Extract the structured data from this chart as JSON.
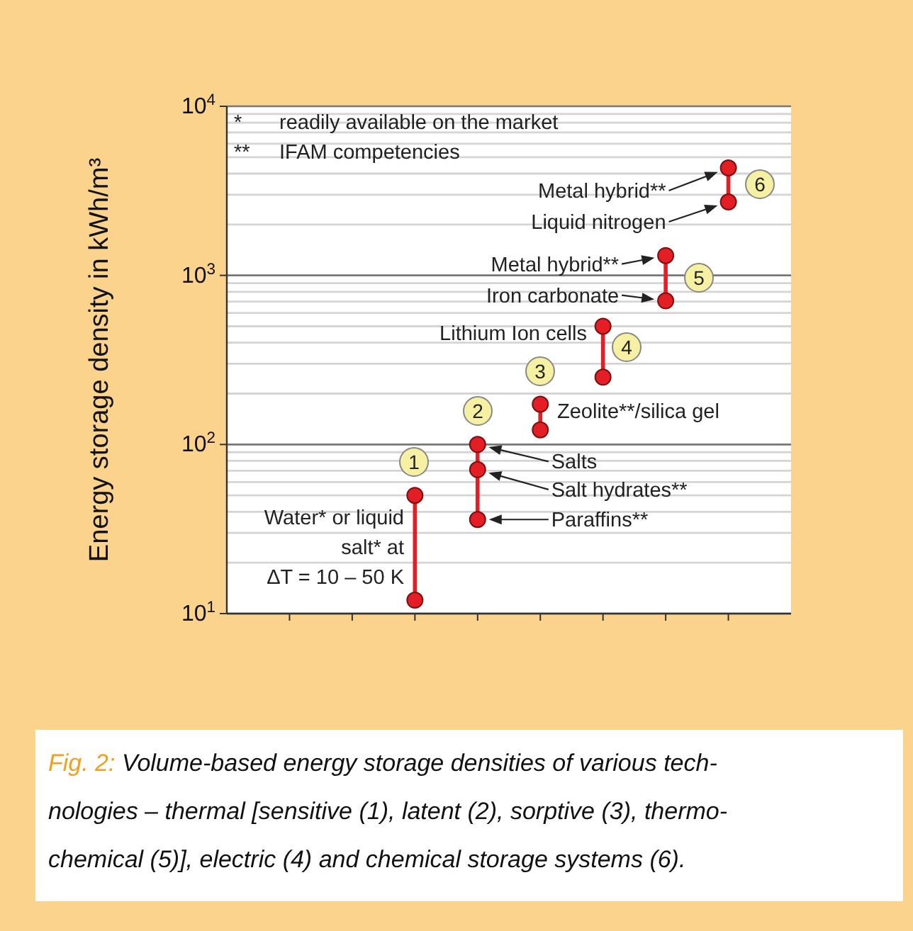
{
  "chart_data": {
    "type": "scatter",
    "ylabel": "Energy storage density in kWh/m³",
    "categories": [
      null,
      null,
      null,
      null,
      null,
      null,
      null,
      null
    ],
    "ylim": [
      10,
      10000
    ],
    "yticks": [
      {
        "value": 10,
        "label": "10$^{1}$"
      },
      {
        "value": 20,
        "label": null
      },
      {
        "value": 30,
        "label": null
      },
      {
        "value": 40,
        "label": null
      },
      {
        "value": 50,
        "label": null
      },
      {
        "value": 60,
        "label": null
      },
      {
        "value": 70,
        "label": null
      },
      {
        "value": 80,
        "label": null
      },
      {
        "value": 90,
        "label": null
      },
      {
        "value": 100,
        "label": "10$^{2}$"
      },
      {
        "value": 200,
        "label": null
      },
      {
        "value": 300,
        "label": null
      },
      {
        "value": 400,
        "label": null
      },
      {
        "value": 500,
        "label": null
      },
      {
        "value": 600,
        "label": null
      },
      {
        "value": 700,
        "label": null
      },
      {
        "value": 800,
        "label": null
      },
      {
        "value": 900,
        "label": null
      },
      {
        "value": 1000,
        "label": "10$^{3}$"
      },
      {
        "value": 2000,
        "label": null
      },
      {
        "value": 3000,
        "label": null
      },
      {
        "value": 4000,
        "label": null
      },
      {
        "value": 5000,
        "label": null
      },
      {
        "value": 6000,
        "label": null
      },
      {
        "value": 7000,
        "label": null
      },
      {
        "value": 8000,
        "label": null
      },
      {
        "value": 9000,
        "label": null
      },
      {
        "value": 10000,
        "label": "10$^{4}$"
      }
    ],
    "log": "y",
    "grid": "y",
    "tick_labels": "y",
    "marker": "circle",
    "series": [
      {
        "color": "#e31e24",
        "values": [
          null,
          null,
          50,
          100,
          173,
          500,
          1310,
          4320
        ]
      },
      {
        "color": "#e31e24",
        "values": [
          null,
          null,
          null,
          71,
          null,
          null,
          null,
          null
        ]
      },
      {
        "color": "#e31e24",
        "values": [
          null,
          null,
          12,
          36,
          122,
          250,
          707,
          2720
        ]
      }
    ],
    "annotations": [
      "* readily available on the market",
      "** IFAM competencies",
      "1",
      "2",
      "3",
      "4",
      "5",
      "6",
      "Water* or liquid\nsalt* at\nΔT = 10 – 50 K",
      "Zeolite**/silica gel",
      "Lithium Ion cells",
      "Metal hybrid**",
      "Liquid nitrogen",
      "Metal hybrid**",
      "Iron carbonate",
      "Salts",
      "Salt hydrates**",
      "Paraffins**",
      "Fig. 2:",
      "Volume-based energy storage densities of various tech-",
      "nologies – thermal [sensitive (1), latent (2), sorptive (3), thermo-",
      "chemical (5)], electric (4) and chemical storage systems (6)."
    ]
  }
}
